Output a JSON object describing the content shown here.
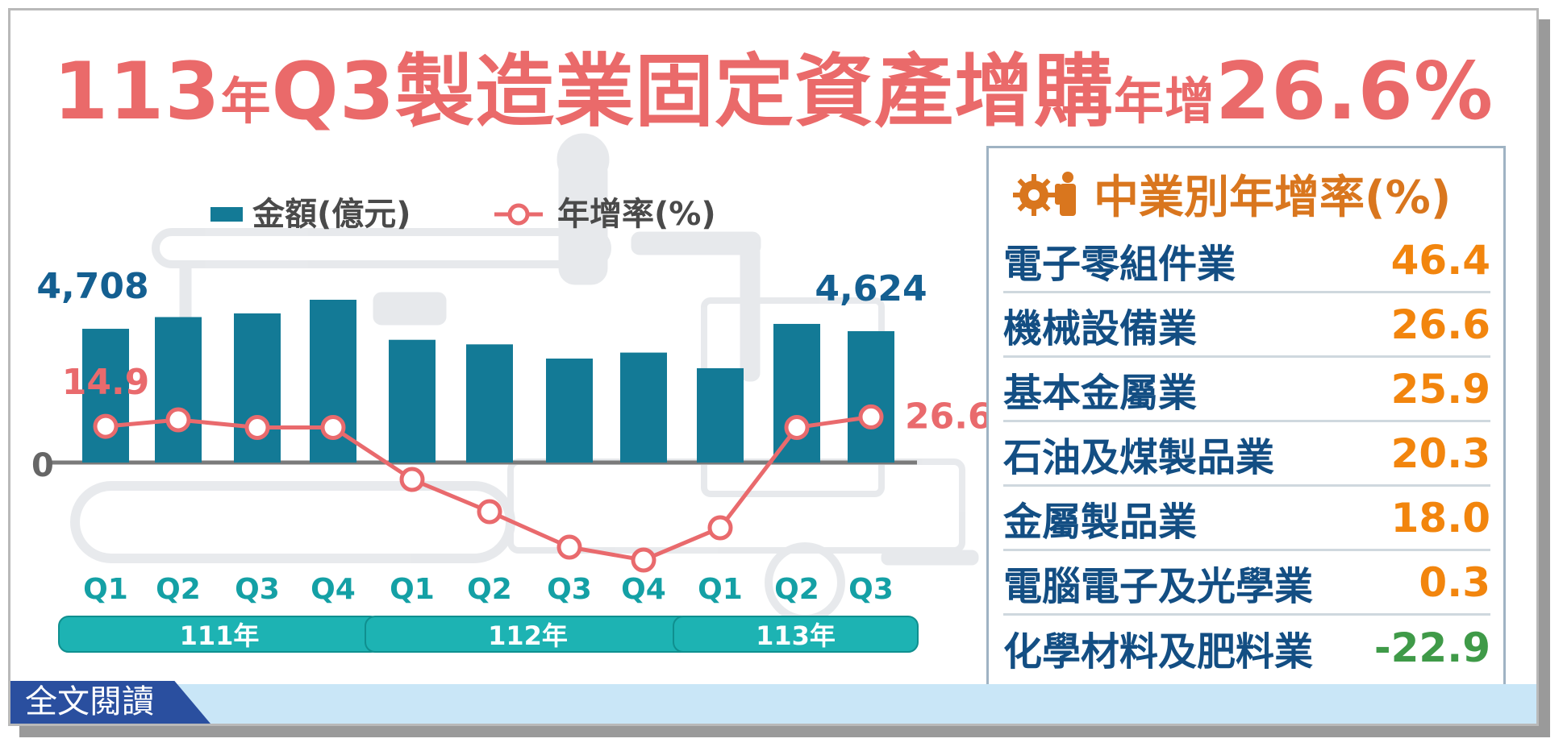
{
  "title": {
    "part1": "113",
    "part2": "年",
    "part3": "Q3製造業固定資產增購",
    "part4": "年增",
    "part5": "26.6%"
  },
  "legend": {
    "bar": "金額(億元)",
    "line": "年增率(%)"
  },
  "read_button": "全文閱讀",
  "chart_data": {
    "type": "bar+line",
    "categories": [
      "Q1",
      "Q2",
      "Q3",
      "Q4",
      "Q1",
      "Q2",
      "Q3",
      "Q4",
      "Q1",
      "Q2",
      "Q3"
    ],
    "years": [
      {
        "label": "111年",
        "span": [
          0,
          3
        ]
      },
      {
        "label": "112年",
        "span": [
          4,
          7
        ]
      },
      {
        "label": "113年",
        "span": [
          8,
          10
        ]
      }
    ],
    "series": [
      {
        "name": "金額(億元)",
        "type": "bar",
        "values": [
          4708,
          5120,
          5250,
          5730,
          4320,
          4160,
          3660,
          3870,
          3320,
          4880,
          4624
        ]
      },
      {
        "name": "年增率(%)",
        "type": "line",
        "values": [
          14.9,
          23.0,
          13.5,
          13.5,
          -5.0,
          -15.0,
          -26.0,
          -30.0,
          -20.0,
          13.5,
          26.6
        ]
      }
    ],
    "value_labels": [
      {
        "index": 0,
        "series": "bar",
        "text": "4,708"
      },
      {
        "index": 10,
        "series": "bar",
        "text": "4,624"
      },
      {
        "index": 0,
        "series": "line",
        "text": "14.9"
      },
      {
        "index": 10,
        "series": "line",
        "text": "26.6"
      }
    ],
    "zero_label": "0",
    "bar_ylim": [
      0,
      5730
    ],
    "line_ylim": [
      -30,
      26.6
    ],
    "colors": {
      "bar": "#137a96",
      "line": "#e96a6d",
      "year_pill": "#1db3b3",
      "quarter_text": "#14a0a5",
      "bar_label": "#145f91"
    }
  },
  "industry_panel": {
    "title": "中業別年增率(%)",
    "icon": "gear-worker-icon",
    "rows": [
      {
        "name": "電子零組件業",
        "value": "46.4",
        "color": "#f2850d"
      },
      {
        "name": "機械設備業",
        "value": "26.6",
        "color": "#f2850d"
      },
      {
        "name": "基本金屬業",
        "value": "25.9",
        "color": "#f2850d"
      },
      {
        "name": "石油及煤製品業",
        "value": "20.3",
        "color": "#f2850d"
      },
      {
        "name": "金屬製品業",
        "value": "18.0",
        "color": "#f2850d"
      },
      {
        "name": "電腦電子及光學業",
        "value": "0.3",
        "color": "#f2850d"
      },
      {
        "name": "化學材料及肥料業",
        "value": "-22.9",
        "color": "#3f9a48"
      }
    ]
  }
}
